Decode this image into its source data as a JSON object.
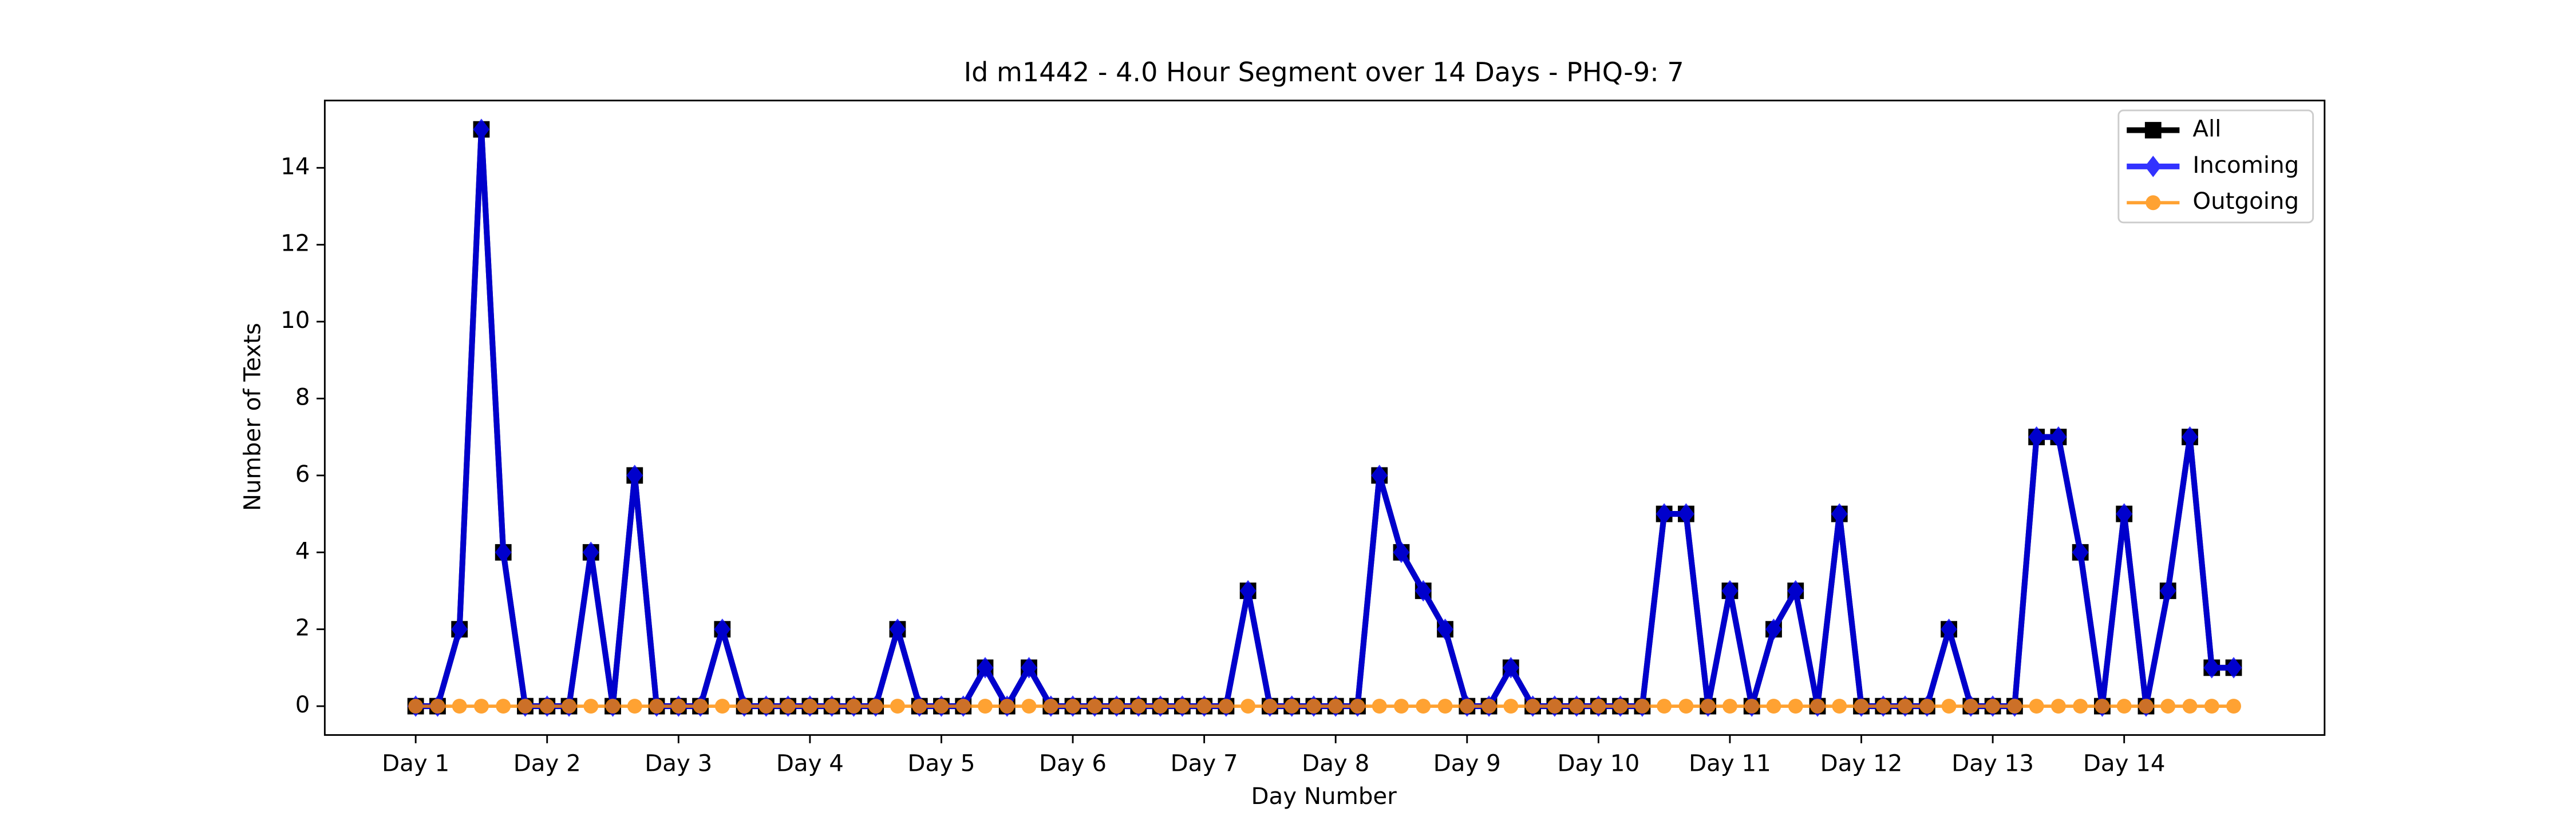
{
  "chart_data": {
    "type": "line",
    "title": "Id m1442 - 4.0 Hour Segment over 14 Days - PHQ-9: 7",
    "xlabel": "Day Number",
    "ylabel": "Number of Texts",
    "x": [
      0,
      1,
      2,
      3,
      4,
      5,
      6,
      7,
      8,
      9,
      10,
      11,
      12,
      13,
      14,
      15,
      16,
      17,
      18,
      19,
      20,
      21,
      22,
      23,
      24,
      25,
      26,
      27,
      28,
      29,
      30,
      31,
      32,
      33,
      34,
      35,
      36,
      37,
      38,
      39,
      40,
      41,
      42,
      43,
      44,
      45,
      46,
      47,
      48,
      49,
      50,
      51,
      52,
      53,
      54,
      55,
      56,
      57,
      58,
      59,
      60,
      61,
      62,
      63,
      64,
      65,
      66,
      67,
      68,
      69,
      70,
      71,
      72,
      73,
      74,
      75,
      76,
      77,
      78,
      79,
      80,
      81,
      82,
      83
    ],
    "series": [
      {
        "name": "All",
        "color": "#000000",
        "marker": "square",
        "values": [
          0,
          0,
          2,
          15,
          4,
          0,
          0,
          0,
          4,
          0,
          6,
          0,
          0,
          0,
          2,
          0,
          0,
          0,
          0,
          0,
          0,
          0,
          2,
          0,
          0,
          0,
          1,
          0,
          1,
          0,
          0,
          0,
          0,
          0,
          0,
          0,
          0,
          0,
          3,
          0,
          0,
          0,
          0,
          0,
          6,
          4,
          3,
          2,
          0,
          0,
          1,
          0,
          0,
          0,
          0,
          0,
          0,
          5,
          5,
          0,
          3,
          0,
          2,
          3,
          0,
          5,
          0,
          0,
          0,
          0,
          2,
          0,
          0,
          0,
          7,
          7,
          4,
          0,
          5,
          0,
          3,
          7,
          1,
          1
        ]
      },
      {
        "name": "Incoming",
        "color": "#0000ff",
        "marker": "diamond",
        "values": [
          0,
          0,
          2,
          15,
          4,
          0,
          0,
          0,
          4,
          0,
          6,
          0,
          0,
          0,
          2,
          0,
          0,
          0,
          0,
          0,
          0,
          0,
          2,
          0,
          0,
          0,
          1,
          0,
          1,
          0,
          0,
          0,
          0,
          0,
          0,
          0,
          0,
          0,
          3,
          0,
          0,
          0,
          0,
          0,
          6,
          4,
          3,
          2,
          0,
          0,
          1,
          0,
          0,
          0,
          0,
          0,
          0,
          5,
          5,
          0,
          3,
          0,
          2,
          3,
          0,
          5,
          0,
          0,
          0,
          0,
          2,
          0,
          0,
          0,
          7,
          7,
          4,
          0,
          5,
          0,
          3,
          7,
          1,
          1
        ]
      },
      {
        "name": "Outgoing",
        "color": "#ff8c00",
        "marker": "circle",
        "values": [
          0,
          0,
          0,
          0,
          0,
          0,
          0,
          0,
          0,
          0,
          0,
          0,
          0,
          0,
          0,
          0,
          0,
          0,
          0,
          0,
          0,
          0,
          0,
          0,
          0,
          0,
          0,
          0,
          0,
          0,
          0,
          0,
          0,
          0,
          0,
          0,
          0,
          0,
          0,
          0,
          0,
          0,
          0,
          0,
          0,
          0,
          0,
          0,
          0,
          0,
          0,
          0,
          0,
          0,
          0,
          0,
          0,
          0,
          0,
          0,
          0,
          0,
          0,
          0,
          0,
          0,
          0,
          0,
          0,
          0,
          0,
          0,
          0,
          0,
          0,
          0,
          0,
          0,
          0,
          0,
          0,
          0,
          0,
          0
        ]
      }
    ],
    "xlim": [
      -4.15,
      87.15
    ],
    "xticks": [
      {
        "value": 0,
        "label": "Day 1"
      },
      {
        "value": 6,
        "label": "Day 2"
      },
      {
        "value": 12,
        "label": "Day 3"
      },
      {
        "value": 18,
        "label": "Day 4"
      },
      {
        "value": 24,
        "label": "Day 5"
      },
      {
        "value": 30,
        "label": "Day 6"
      },
      {
        "value": 36,
        "label": "Day 7"
      },
      {
        "value": 42,
        "label": "Day 8"
      },
      {
        "value": 48,
        "label": "Day 9"
      },
      {
        "value": 54,
        "label": "Day 10"
      },
      {
        "value": 60,
        "label": "Day 11"
      },
      {
        "value": 66,
        "label": "Day 12"
      },
      {
        "value": 72,
        "label": "Day 13"
      },
      {
        "value": 78,
        "label": "Day 14"
      }
    ],
    "ylim": [
      -0.75,
      15.75
    ],
    "yticks": [
      0,
      2,
      4,
      6,
      8,
      10,
      12,
      14
    ],
    "legend": "upper right",
    "grid": false
  }
}
